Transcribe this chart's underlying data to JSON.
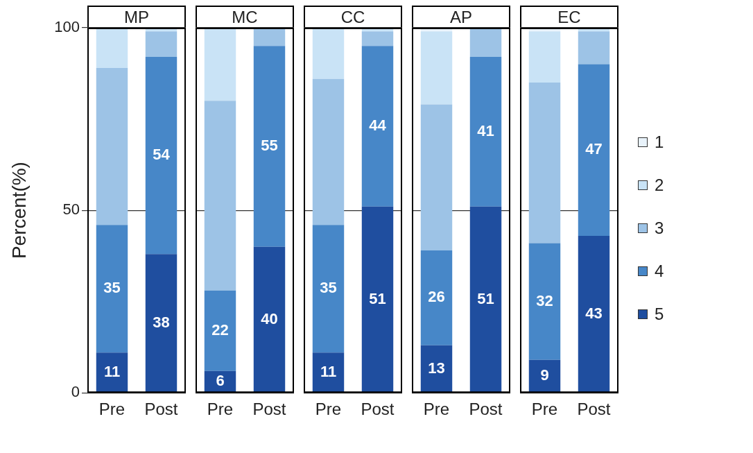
{
  "chart_data": [
    {
      "type": "bar",
      "title": "MP",
      "categories": [
        "Pre",
        "Post"
      ],
      "stacked": true,
      "ylabel": "Percent(%)",
      "ylim": [
        0,
        100
      ],
      "yticks": [
        0,
        50,
        100
      ],
      "grid": "y",
      "legend": false,
      "series": [
        {
          "color": "#1f4e9f",
          "values": [
            11,
            38
          ],
          "value_labels": [
            "11",
            "38"
          ]
        },
        {
          "color": "#4787c8",
          "values": [
            35,
            54
          ],
          "value_labels": [
            "35",
            "54"
          ]
        },
        {
          "color": "#9dc3e6",
          "values": [
            43,
            7
          ]
        },
        {
          "color": "#c9e3f6",
          "values": [
            11,
            1
          ]
        },
        {
          "color": "#e8f2fa",
          "values": [
            null,
            null
          ]
        }
      ]
    },
    {
      "type": "bar",
      "title": "MC",
      "categories": [
        "Pre",
        "Post"
      ],
      "stacked": true,
      "ylim": [
        0,
        100
      ],
      "yticks": [
        0,
        50,
        100
      ],
      "grid": "y",
      "legend": false,
      "tick_labels": "x",
      "series": [
        {
          "color": "#1f4e9f",
          "values": [
            6,
            40
          ],
          "value_labels": [
            "6",
            "40"
          ]
        },
        {
          "color": "#4787c8",
          "values": [
            22,
            55
          ],
          "value_labels": [
            "22",
            "55"
          ]
        },
        {
          "color": "#9dc3e6",
          "values": [
            52,
            5
          ]
        },
        {
          "color": "#c9e3f6",
          "values": [
            20,
            null
          ]
        },
        {
          "color": "#e8f2fa",
          "values": [
            null,
            null
          ]
        }
      ]
    },
    {
      "type": "bar",
      "title": "CC",
      "categories": [
        "Pre",
        "Post"
      ],
      "stacked": true,
      "ylim": [
        0,
        100
      ],
      "yticks": [
        0,
        50,
        100
      ],
      "grid": "y",
      "legend": false,
      "tick_labels": "x",
      "series": [
        {
          "color": "#1f4e9f",
          "values": [
            11,
            51
          ],
          "value_labels": [
            "11",
            "51"
          ]
        },
        {
          "color": "#4787c8",
          "values": [
            35,
            44
          ],
          "value_labels": [
            "35",
            "44"
          ]
        },
        {
          "color": "#9dc3e6",
          "values": [
            40,
            4
          ]
        },
        {
          "color": "#c9e3f6",
          "values": [
            14,
            1
          ]
        },
        {
          "color": "#e8f2fa",
          "values": [
            null,
            null
          ]
        }
      ]
    },
    {
      "type": "bar",
      "title": "AP",
      "categories": [
        "Pre",
        "Post"
      ],
      "stacked": true,
      "ylim": [
        0,
        100
      ],
      "yticks": [
        0,
        50,
        100
      ],
      "grid": "y",
      "legend": false,
      "tick_labels": "x",
      "series": [
        {
          "color": "#1f4e9f",
          "values": [
            13,
            51
          ],
          "value_labels": [
            "13",
            "51"
          ]
        },
        {
          "color": "#4787c8",
          "values": [
            26,
            41
          ],
          "value_labels": [
            "26",
            "41"
          ]
        },
        {
          "color": "#9dc3e6",
          "values": [
            40,
            8
          ]
        },
        {
          "color": "#c9e3f6",
          "values": [
            20,
            null
          ]
        },
        {
          "color": "#e8f2fa",
          "values": [
            1,
            null
          ]
        }
      ]
    },
    {
      "type": "bar",
      "title": "EC",
      "categories": [
        "Pre",
        "Post"
      ],
      "stacked": true,
      "ylim": [
        0,
        100
      ],
      "yticks": [
        0,
        50,
        100
      ],
      "grid": "y",
      "legend": "right",
      "tick_labels": "x",
      "series": [
        {
          "name": "5",
          "color": "#1f4e9f",
          "values": [
            9,
            43
          ],
          "value_labels": [
            "9",
            "43"
          ]
        },
        {
          "name": "4",
          "color": "#4787c8",
          "values": [
            32,
            47
          ],
          "value_labels": [
            "32",
            "47"
          ]
        },
        {
          "name": "3",
          "color": "#9dc3e6",
          "values": [
            44,
            9
          ]
        },
        {
          "name": "2",
          "color": "#c9e3f6",
          "values": [
            14,
            1
          ]
        },
        {
          "name": "1",
          "color": "#e8f2fa",
          "values": [
            1,
            null
          ]
        }
      ]
    }
  ]
}
